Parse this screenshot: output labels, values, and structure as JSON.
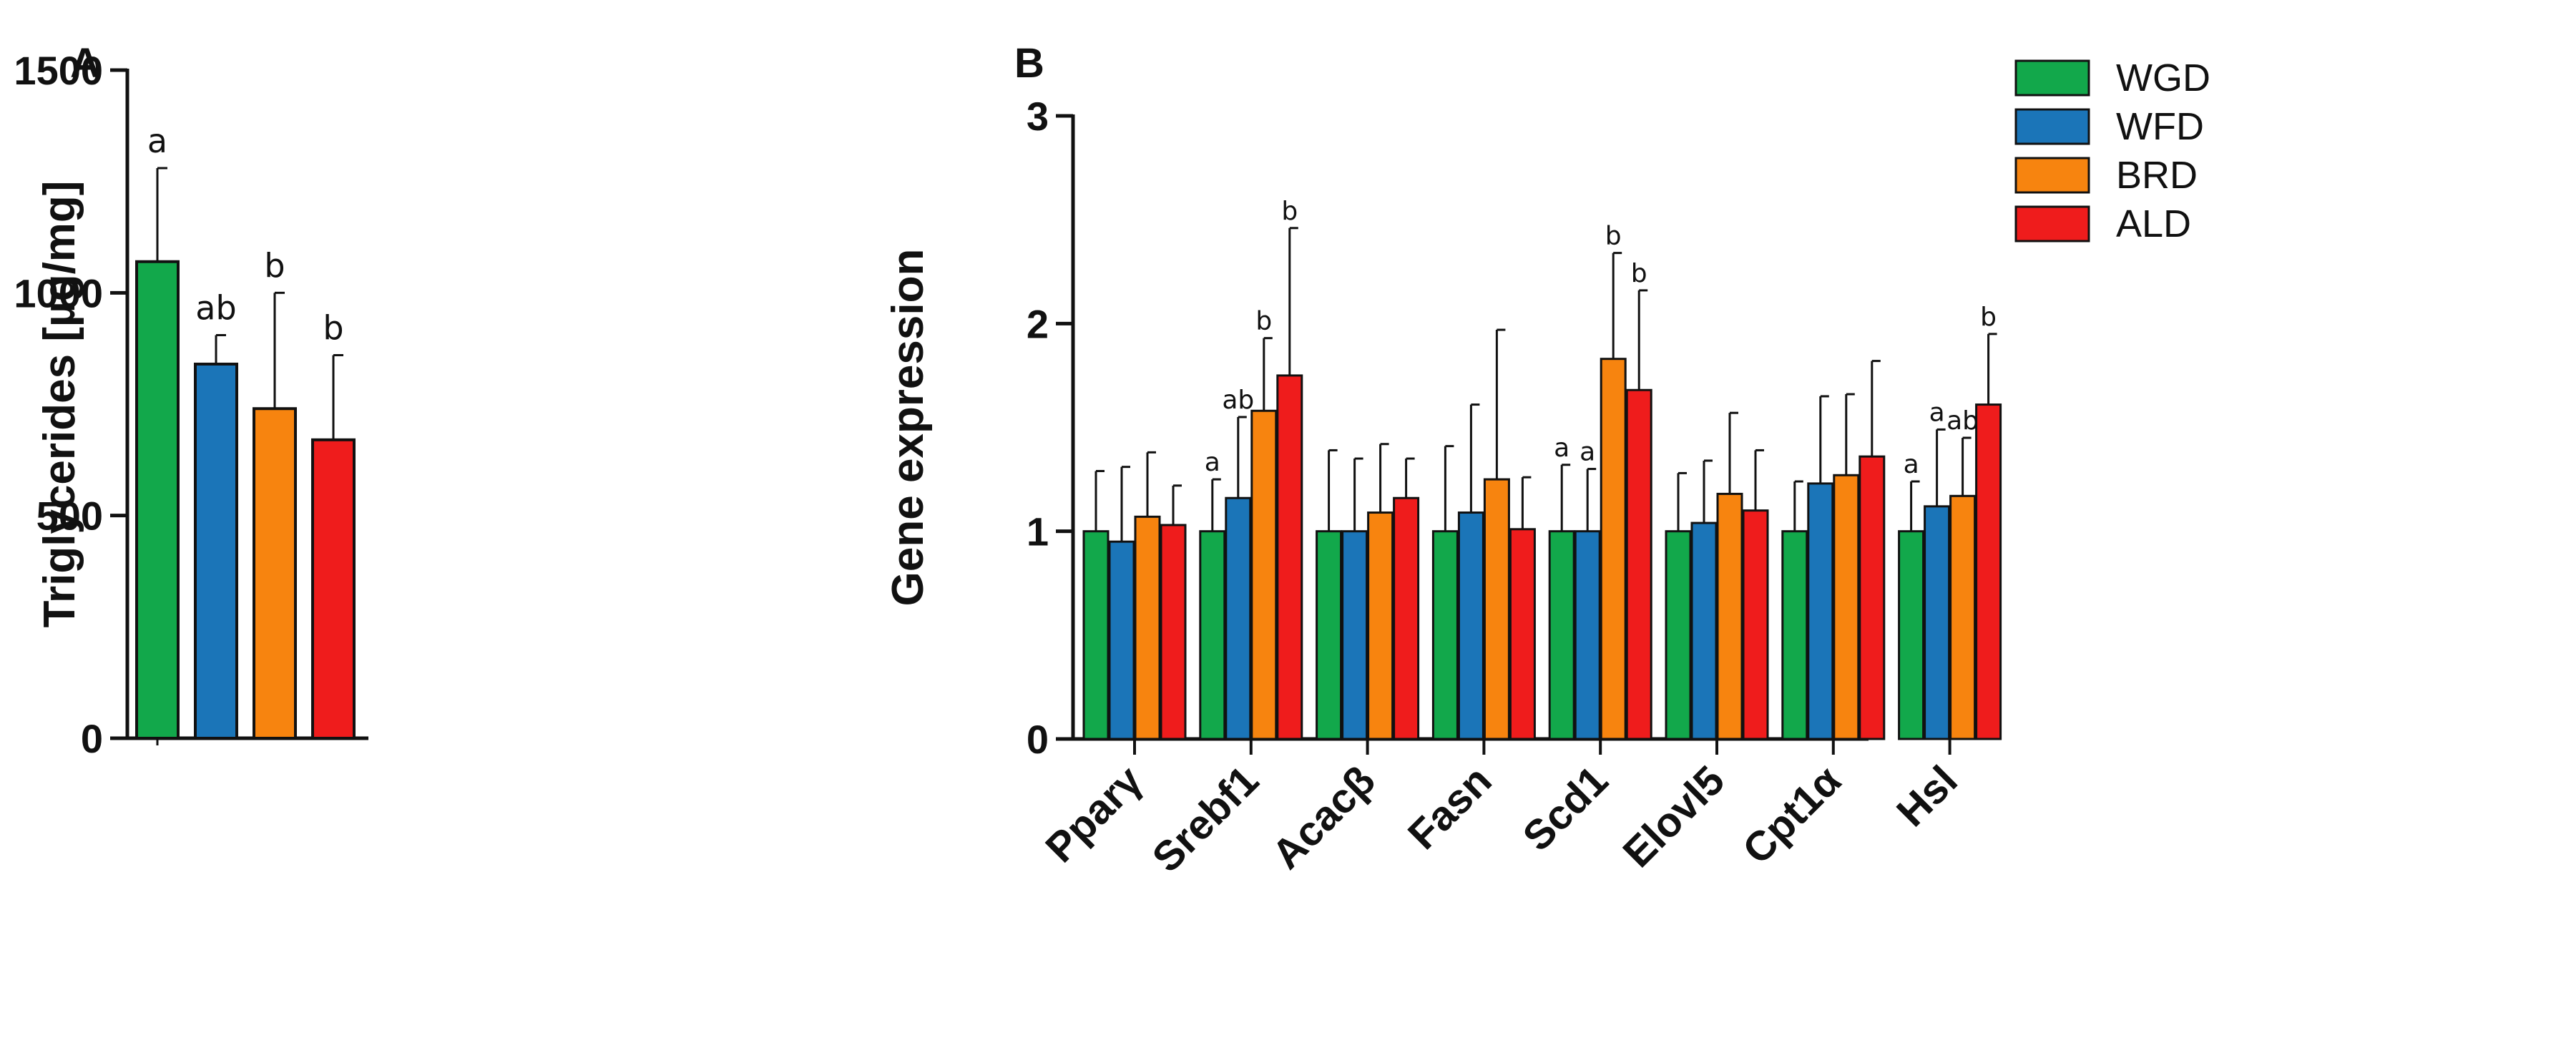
{
  "panels": {
    "a_label": "A",
    "b_label": "B"
  },
  "legend": [
    {
      "name": "WGD",
      "color": "#12a84b"
    },
    {
      "name": "WFD",
      "color": "#1b75b8"
    },
    {
      "name": "BRD",
      "color": "#f7840f"
    },
    {
      "name": "ALD",
      "color": "#ef1c1c"
    }
  ],
  "chart_data": [
    {
      "type": "bar",
      "id": "A",
      "title": "",
      "xlabel": "",
      "ylabel": "Triglycerides [µg/mg]",
      "ylim": [
        0,
        1500
      ],
      "yticks": [
        0,
        500,
        1000,
        1500
      ],
      "categories": [
        "WGD",
        "WFD",
        "BRD",
        "ALD"
      ],
      "values": [
        1070,
        840,
        740,
        670
      ],
      "errors": [
        210,
        65,
        260,
        190
      ],
      "annotations": [
        "a",
        "ab",
        "b",
        "b"
      ],
      "colors": [
        "#12a84b",
        "#1b75b8",
        "#f7840f",
        "#ef1c1c"
      ]
    },
    {
      "type": "bar",
      "id": "B",
      "title": "",
      "xlabel": "",
      "ylabel": "Gene expression",
      "ylim": [
        0,
        3
      ],
      "yticks": [
        0,
        1,
        2,
        3
      ],
      "categories": [
        "Pparγ",
        "Srebf1",
        "Acacβ",
        "Fasn",
        "Scd1",
        "Elovl5",
        "Cpt1α",
        "Hsl"
      ],
      "series": [
        {
          "name": "WGD",
          "color": "#12a84b",
          "values": [
            1.0,
            1.0,
            1.0,
            1.0,
            1.0,
            1.0,
            1.0,
            1.0
          ],
          "errors": [
            0.29,
            0.25,
            0.39,
            0.41,
            0.32,
            0.28,
            0.24,
            0.24
          ],
          "annotations": [
            "",
            "a",
            "",
            "",
            "a",
            "",
            "",
            "a"
          ]
        },
        {
          "name": "WFD",
          "color": "#1b75b8",
          "values": [
            0.95,
            1.16,
            1.0,
            1.09,
            1.0,
            1.04,
            1.23,
            1.12
          ],
          "errors": [
            0.36,
            0.39,
            0.35,
            0.52,
            0.3,
            0.3,
            0.42,
            0.37
          ],
          "annotations": [
            "",
            "ab",
            "",
            "",
            "a",
            "",
            "",
            "a"
          ]
        },
        {
          "name": "BRD",
          "color": "#f7840f",
          "values": [
            1.07,
            1.58,
            1.09,
            1.25,
            1.83,
            1.18,
            1.27,
            1.17
          ],
          "errors": [
            0.31,
            0.35,
            0.33,
            0.72,
            0.51,
            0.39,
            0.39,
            0.28
          ],
          "annotations": [
            "",
            "b",
            "",
            "",
            "b",
            "",
            "",
            "ab"
          ]
        },
        {
          "name": "ALD",
          "color": "#ef1c1c",
          "values": [
            1.03,
            1.75,
            1.16,
            1.01,
            1.68,
            1.1,
            1.36,
            1.61
          ],
          "errors": [
            0.19,
            0.71,
            0.19,
            0.25,
            0.48,
            0.29,
            0.46,
            0.34
          ],
          "annotations": [
            "",
            "b",
            "",
            "",
            "b",
            "",
            "",
            "b"
          ]
        }
      ]
    }
  ]
}
